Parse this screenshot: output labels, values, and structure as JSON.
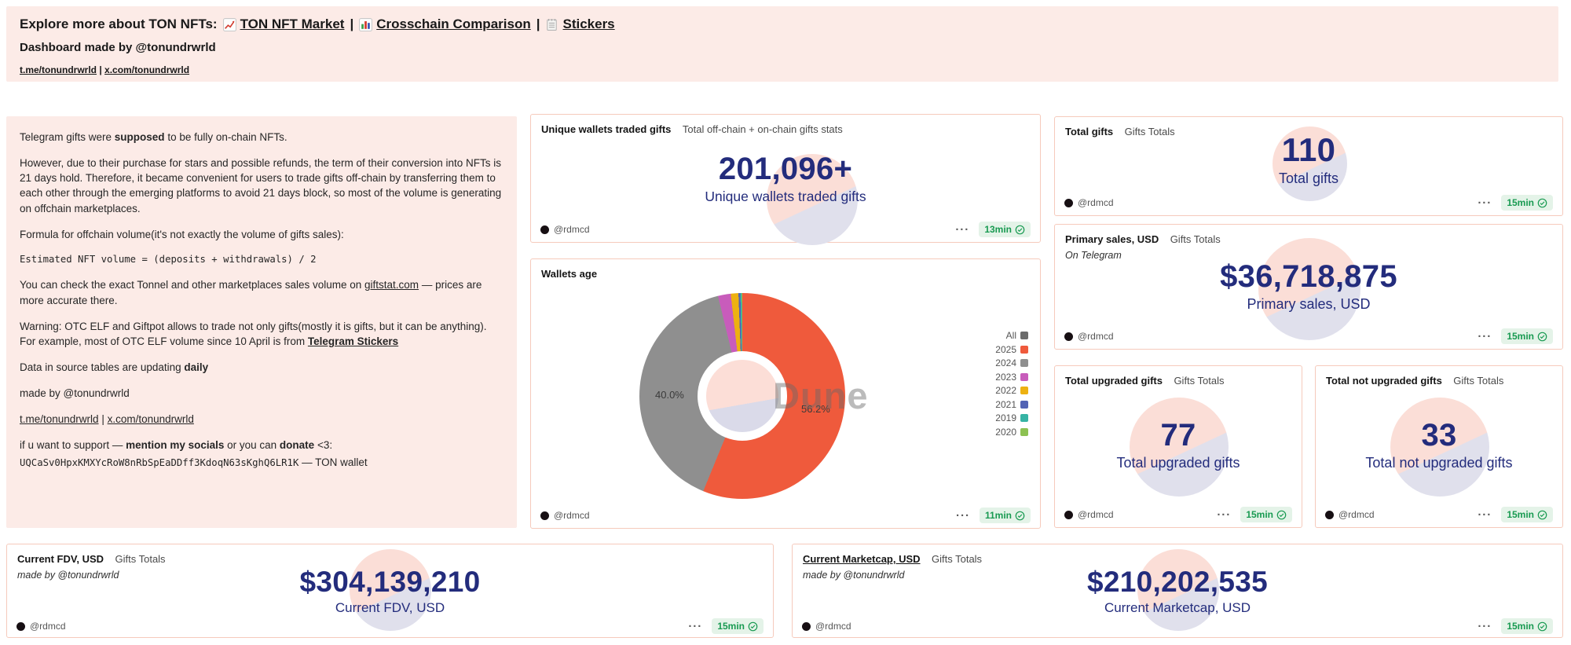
{
  "colors": {
    "panel_pink": "#fcebe7",
    "card_border": "#f6cabc",
    "counter_navy": "#232c7c",
    "pill_green": "#189a51",
    "pill_green_bg": "#e4f3e8",
    "watermark_pink": "#fbded7",
    "watermark_lavender": "#e0e0ec"
  },
  "banner": {
    "heading_prefix": "Explore more about TON NFTs:",
    "separator": "|",
    "links": [
      {
        "icon": "chart-increasing-icon",
        "label": "TON NFT Market"
      },
      {
        "icon": "bar-chart-icon",
        "label": "Crosschain Comparison"
      },
      {
        "icon": "notepad-icon",
        "label": "Stickers"
      }
    ],
    "byline": "Dashboard made by @tonundrwrld",
    "social": {
      "telegram": "t.me/tonundrwrld",
      "divider": "|",
      "x": "x.com/tonundrwrld"
    }
  },
  "info_panel": {
    "p1": {
      "a": "Telegram gifts were ",
      "b": "supposed",
      "c": " to be fully on-chain NFTs."
    },
    "p2": "However, due to their purchase for stars and possible refunds, the term of their conversion into NFTs is 21 days hold. Therefore, it became convenient for users to trade gifts off-chain by transferring them to each other through the emerging platforms to avoid 21 days block, so most of the volume is generating on offchain marketplaces.",
    "p3": "Formula for offchain volume(it's not exactly the volume of gifts sales):",
    "code": "Estimated NFT volume = (deposits + withdrawals) / 2",
    "p5": {
      "a": "You can check the exact Tonnel and other marketplaces sales volume on ",
      "link": "giftstat.com",
      "c": " — prices are more accurate there."
    },
    "p6": {
      "a": "Warning: OTC ELF and Giftpot allows to trade not only gifts(mostly it is gifts, but it can be anything). For example, most of OTC ELF volume since 10 April is from ",
      "link": "Telegram Stickers"
    },
    "p7": {
      "a": "Data in source tables are updating ",
      "b": "daily"
    },
    "p8": "made by @tonundrwrld",
    "p9": {
      "telegram": "t.me/tonundrwrld",
      "divider": "|",
      "x": "x.com/tonundrwrld"
    },
    "p10": {
      "a": "if u want to support — ",
      "b": "mention my socials",
      "c": " or you can ",
      "d": "donate",
      "e": " <3:"
    },
    "wallet": {
      "address": "UQCaSv0HpxKMXYcRoW8nRbSpEaDDff3KdoqN63sKghQ6LR1K",
      "suffix": " — TON wallet"
    }
  },
  "cards": {
    "unique_wallets": {
      "title": "Unique wallets traded gifts",
      "context": "Total off-chain + on-chain gifts stats",
      "value": "201,096+",
      "label": "Unique wallets traded gifts",
      "author": "@rdmcd",
      "time": "13min"
    },
    "wallets_age": {
      "title": "Wallets age",
      "author": "@rdmcd",
      "time": "11min"
    },
    "total_gifts": {
      "title": "Total gifts",
      "context": "Gifts Totals",
      "value": "110",
      "label": "Total gifts",
      "author": "@rdmcd",
      "time": "15min"
    },
    "primary_sales": {
      "title": "Primary sales, USD",
      "context": "Gifts Totals",
      "subtitle": "On Telegram",
      "value": "$36,718,875",
      "label": "Primary sales, USD",
      "author": "@rdmcd",
      "time": "15min"
    },
    "upgraded": {
      "title": "Total upgraded gifts",
      "context": "Gifts Totals",
      "value": "77",
      "label": "Total upgraded gifts",
      "author": "@rdmcd",
      "time": "15min"
    },
    "not_upgraded": {
      "title": "Total not upgraded gifts",
      "context": "Gifts Totals",
      "value": "33",
      "label": "Total not upgraded gifts",
      "author": "@rdmcd",
      "time": "15min"
    },
    "fdv": {
      "title": "Current FDV, USD",
      "context": "Gifts Totals",
      "subtitle": "made by @tonundrwrld",
      "value": "$304,139,210",
      "label": "Current FDV, USD",
      "author": "@rdmcd",
      "time": "15min"
    },
    "marketcap": {
      "title": "Current Marketcap, USD",
      "context": "Gifts Totals",
      "subtitle": "made by @tonundrwrld",
      "value": "$210,202,535",
      "label": "Current Marketcap, USD",
      "author": "@rdmcd",
      "time": "15min"
    }
  },
  "chart_data": {
    "type": "pie",
    "donut": true,
    "title": "Wallets age",
    "legend_position": "right",
    "watermark": "Dune",
    "slices": [
      {
        "label": "2025",
        "value": 56.2,
        "color": "#ef5a3c"
      },
      {
        "label": "2024",
        "value": 40.0,
        "color": "#8f8f8f"
      },
      {
        "label": "2023",
        "value": 2.0,
        "color": "#c85cbb"
      },
      {
        "label": "2022",
        "value": 1.2,
        "color": "#edb111"
      },
      {
        "label": "2021",
        "value": 0.3,
        "color": "#5263b4"
      },
      {
        "label": "2019",
        "value": 0.2,
        "color": "#36b3a4"
      },
      {
        "label": "2020",
        "value": 0.1,
        "color": "#8cc152"
      }
    ],
    "legend": [
      {
        "label": "All",
        "color": "#6b6b6b"
      },
      {
        "label": "2025",
        "color": "#ef5a3c"
      },
      {
        "label": "2024",
        "color": "#8f8f8f"
      },
      {
        "label": "2023",
        "color": "#c85cbb"
      },
      {
        "label": "2022",
        "color": "#edb111"
      },
      {
        "label": "2021",
        "color": "#5263b4"
      },
      {
        "label": "2019",
        "color": "#36b3a4"
      },
      {
        "label": "2020",
        "color": "#8cc152"
      }
    ],
    "callouts": [
      {
        "text": "40.0%",
        "slice": "2024"
      },
      {
        "text": "56.2%",
        "slice": "2025"
      }
    ]
  }
}
